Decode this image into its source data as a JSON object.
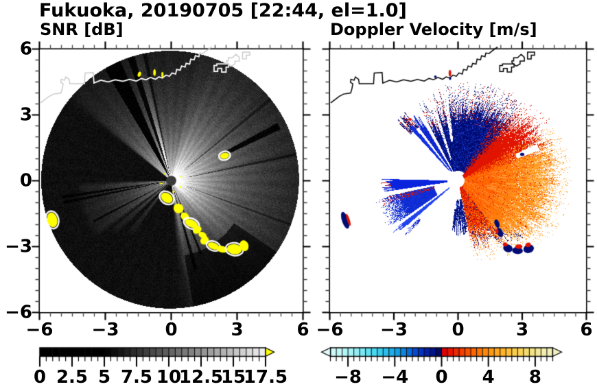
{
  "title": "Fukuoka, 20190705 [22:44, el=1.0]",
  "panels": {
    "left": {
      "subtitle": "SNR [dB]"
    },
    "right": {
      "subtitle": "Doppler Velocity [m/s]"
    }
  },
  "axes": {
    "range": [
      -6,
      6
    ],
    "major_step": 3,
    "minor_step": 0.5,
    "tick_values": [
      -6,
      -3,
      0,
      3,
      6
    ],
    "tick_labels": [
      "−6",
      "−3",
      "0",
      "3",
      "6"
    ]
  },
  "colors": {
    "navy": "#000c74",
    "blue_speckle": "#1c3ace",
    "blue_wedge": "#0a23dd",
    "blue_mass": "#0d2ad6",
    "blue_ray": "#2143ee",
    "blue_streak1": "#0a1ecf",
    "blue_streak2": "#1130e0",
    "red": "#e01400",
    "orange_inner": "#ff6400",
    "orange_mid": "#ff8710",
    "orange_outer": "#ffa028",
    "yellow_clutter": "#ffff00",
    "hub_gray": "#3a3a3a",
    "coast_left_inner": "#ffffff",
    "coast_left_outer": "#c9c9c9",
    "coast_right": "#000000",
    "snr_arrow": "#ffff00",
    "dv_arrow_left": "#dffafa",
    "dv_arrow_right": "#f4f0c6"
  },
  "map": {
    "coast_main": [
      [
        -5.95,
        3.55
      ],
      [
        -5.55,
        3.85
      ],
      [
        -5.35,
        3.95
      ],
      [
        -5.02,
        4.0
      ],
      [
        -4.96,
        4.2
      ],
      [
        -4.92,
        4.42
      ],
      [
        -5.03,
        4.48
      ],
      [
        -5.01,
        4.62
      ],
      [
        -4.86,
        4.58
      ],
      [
        -4.8,
        4.73
      ],
      [
        -4.65,
        4.62
      ],
      [
        -4.62,
        4.42
      ],
      [
        -3.95,
        4.42
      ],
      [
        -3.92,
        4.91
      ],
      [
        -3.55,
        4.93
      ],
      [
        -3.52,
        4.45
      ],
      [
        -3.2,
        4.58
      ],
      [
        -2.87,
        4.5
      ],
      [
        -2.55,
        4.6
      ],
      [
        -2.2,
        4.53
      ],
      [
        -1.9,
        4.62
      ],
      [
        -1.58,
        4.54
      ],
      [
        -1.36,
        4.66
      ],
      [
        -1.15,
        4.6
      ],
      [
        -0.94,
        4.71
      ],
      [
        -0.72,
        4.62
      ],
      [
        -0.56,
        4.73
      ],
      [
        -0.4,
        4.68
      ],
      [
        -0.24,
        4.81
      ],
      [
        -0.08,
        4.76
      ],
      [
        0.04,
        4.91
      ],
      [
        0.2,
        4.86
      ],
      [
        0.25,
        5.07
      ],
      [
        0.41,
        5.04
      ],
      [
        0.47,
        5.23
      ],
      [
        0.63,
        5.18
      ],
      [
        0.68,
        5.35
      ],
      [
        0.84,
        5.31
      ],
      [
        0.89,
        5.54
      ],
      [
        1.05,
        5.51
      ],
      [
        1.1,
        5.7
      ],
      [
        1.26,
        5.65
      ],
      [
        1.3,
        5.82
      ],
      [
        1.45,
        5.8
      ],
      [
        1.6,
        5.92
      ],
      [
        1.85,
        6.1
      ]
    ],
    "piers": [
      {
        "pts": [
          [
            1.95,
            5.25
          ],
          [
            1.95,
            4.98
          ],
          [
            2.12,
            4.98
          ],
          [
            2.12,
            5.12
          ],
          [
            2.3,
            5.12
          ],
          [
            2.3,
            4.95
          ],
          [
            2.5,
            4.95
          ],
          [
            2.5,
            5.18
          ],
          [
            2.62,
            5.18
          ],
          [
            2.62,
            5.32
          ],
          [
            2.08,
            5.32
          ],
          [
            2.08,
            5.25
          ]
        ],
        "close": true
      },
      {
        "pts": [
          [
            2.52,
            5.38
          ],
          [
            2.72,
            5.22
          ],
          [
            2.9,
            5.32
          ],
          [
            2.9,
            5.45
          ],
          [
            3.1,
            5.45
          ],
          [
            3.1,
            5.62
          ],
          [
            2.95,
            5.76
          ],
          [
            2.78,
            5.6
          ],
          [
            2.6,
            5.6
          ],
          [
            2.6,
            5.46
          ],
          [
            2.52,
            5.46
          ]
        ],
        "close": true
      },
      {
        "pts": [
          [
            3.25,
            5.55
          ],
          [
            3.42,
            5.55
          ],
          [
            3.42,
            5.72
          ],
          [
            3.58,
            5.72
          ],
          [
            3.58,
            5.86
          ],
          [
            3.25,
            5.86
          ]
        ],
        "close": true
      }
    ]
  },
  "chart_data": [
    {
      "type": "heatmap",
      "name": "snr",
      "title": "SNR [dB]",
      "xlim": [
        -6,
        6
      ],
      "ylim": [
        -6,
        6
      ],
      "colorbar": {
        "min": 0,
        "max": 17.5,
        "segment_step": 0.5,
        "tick_values": [
          0,
          2.5,
          5,
          7.5,
          10,
          12.5,
          15,
          17.5
        ],
        "tick_labels": [
          "0",
          "2.5",
          "5",
          "7.5",
          "10",
          "12.5",
          "15",
          "17.5"
        ],
        "scale": "grayscale-black-to-white",
        "black_below": 5,
        "overflow_arrow": "right"
      },
      "disk": {
        "cx": -0.05,
        "cy": 0.05,
        "radius": 5.87
      },
      "bright_sectors": [
        {
          "a0": -80,
          "a1": 108,
          "A": 235,
          "k": 2.0,
          "soft": 6
        },
        {
          "a0": -45,
          "a1": 70,
          "A": 65,
          "k": 3.0,
          "soft": 10
        },
        {
          "a0": 121,
          "a1": 139,
          "A": 225,
          "k": 1.9,
          "soft": 3
        },
        {
          "a0": -176,
          "a1": -146,
          "A": 150,
          "k": 1.7,
          "soft": 4,
          "rmax": 4.4
        },
        {
          "a0": -140.8,
          "a1": -136.6,
          "A": 110,
          "k": 1.4,
          "soft": 1.2,
          "rmax": 3.6
        },
        {
          "a0": -129.8,
          "a1": -126.2,
          "A": 95,
          "k": 1.4,
          "soft": 1.2,
          "rmax": 3.2
        },
        {
          "a0": 103,
          "a1": 106.2,
          "A": 200,
          "k": 1.8,
          "soft": 1
        },
        {
          "a0": 109.8,
          "a1": 112.6,
          "A": 170,
          "k": 1.8,
          "soft": 1
        }
      ],
      "dark_lanes": [
        [
          106.4,
          109.6,
          0.12,
          0.3,
          6
        ],
        [
          113,
          120.8,
          0.05,
          0.3,
          6
        ],
        [
          101,
          102.6,
          0.35,
          0.3,
          6
        ],
        [
          25.2,
          28.6,
          0.08,
          2.7,
          5.5
        ],
        [
          -172.3,
          -170.7,
          0.12,
          0.3,
          5
        ],
        [
          -169.4,
          -167.7,
          0.15,
          0.3,
          5
        ],
        [
          -153.2,
          -151.6,
          0.2,
          0.3,
          4
        ],
        [
          -75.8,
          -73.5,
          0.15,
          0.3,
          4.2
        ],
        [
          -68.6,
          -66.9,
          0.18,
          0.3,
          3.6
        ],
        [
          11.2,
          12.6,
          0.45,
          0.8,
          6
        ],
        [
          38.6,
          40.2,
          0.5,
          0.8,
          6
        ],
        [
          -20.8,
          -19.6,
          0.5,
          0.8,
          6
        ],
        [
          -80,
          -34,
          0.3,
          3.45,
          6
        ]
      ],
      "clutter_blobs": [
        [
          -0.2,
          -0.78,
          0.58,
          0.42,
          -35,
          1
        ],
        [
          0.33,
          -1.26,
          0.46,
          0.44,
          -40,
          0
        ],
        [
          0.62,
          -1.63,
          0.4,
          0.34,
          -40,
          0
        ],
        [
          0.92,
          -1.95,
          0.62,
          0.34,
          -25,
          1
        ],
        [
          1.18,
          -2.24,
          0.33,
          0.42,
          -60,
          0
        ],
        [
          1.43,
          -2.48,
          0.4,
          0.27,
          -30,
          0
        ],
        [
          1.52,
          -2.72,
          0.36,
          0.4,
          -50,
          0
        ],
        [
          1.92,
          -2.97,
          0.52,
          0.3,
          -20,
          1
        ],
        [
          2.32,
          -3.12,
          0.52,
          0.3,
          -12,
          0
        ],
        [
          2.88,
          -3.12,
          0.68,
          0.46,
          -8,
          1
        ],
        [
          3.32,
          -2.96,
          0.4,
          0.5,
          18,
          0
        ],
        [
          -5.42,
          -1.78,
          0.46,
          0.68,
          14,
          1
        ],
        [
          2.43,
          1.14,
          0.4,
          0.27,
          14,
          1
        ],
        [
          -1.45,
          4.85,
          0.15,
          0.24,
          -15,
          0
        ],
        [
          -0.76,
          4.93,
          0.12,
          0.3,
          0,
          0
        ],
        [
          -0.4,
          4.83,
          0.1,
          0.26,
          0,
          0
        ],
        [
          0.42,
          -0.28,
          0.12,
          0.08,
          0,
          0
        ],
        [
          0.1,
          -0.5,
          0.1,
          0.1,
          0,
          0
        ],
        [
          -0.45,
          -0.12,
          0.14,
          0.07,
          0,
          0
        ],
        [
          -0.3,
          0.32,
          0.1,
          0.07,
          0,
          0
        ],
        [
          0.45,
          0.18,
          0.1,
          0.06,
          0,
          0
        ]
      ],
      "center_dot": {
        "x": 0,
        "y": 0,
        "radius": 0.23
      }
    },
    {
      "type": "heatmap",
      "name": "doppler",
      "title": "Doppler Velocity [m/s]",
      "xlim": [
        -6,
        6
      ],
      "ylim": [
        -6,
        6
      ],
      "colorbar": {
        "min": -9.5,
        "max": 9.5,
        "segment_step": 0.5,
        "tick_values": [
          -8,
          -4,
          0,
          4,
          8
        ],
        "tick_labels": [
          "−8",
          "−4",
          "0",
          "4",
          "8"
        ],
        "overflow_arrow": "both",
        "stops_neg": [
          [
            -9.75,
            "#dffafa"
          ],
          [
            -7.5,
            "#9ef2f4"
          ],
          [
            -5.5,
            "#3ed4f0"
          ],
          [
            -4.0,
            "#18a8e8"
          ],
          [
            -3.0,
            "#0b7ada"
          ],
          [
            -2.2,
            "#0546cc"
          ],
          [
            -1.4,
            "#0224b0"
          ],
          [
            -0.75,
            "#001488"
          ],
          [
            -0.25,
            "#000a60"
          ]
        ],
        "stops_pos": [
          [
            0.25,
            "#e00000"
          ],
          [
            1.5,
            "#f03400"
          ],
          [
            3.0,
            "#ff6f00"
          ],
          [
            4.5,
            "#ffa018"
          ],
          [
            6.0,
            "#ffc840"
          ],
          [
            7.5,
            "#f2e07a"
          ],
          [
            8.75,
            "#f2ecae"
          ],
          [
            9.75,
            "#f4f0c6"
          ]
        ]
      },
      "hub": {
        "x": 0,
        "y": 0,
        "radius": 0.3
      },
      "fan": {
        "a0": -78,
        "a1": 50,
        "r0": 0.28,
        "redge": [
          [
            -78,
            2.85
          ],
          [
            -60,
            3.15
          ],
          [
            -45,
            3.6
          ],
          [
            -25,
            4.3
          ],
          [
            0,
            4.45
          ],
          [
            15,
            4.5
          ],
          [
            30,
            4.25
          ],
          [
            42,
            4.0
          ],
          [
            50,
            3.8
          ]
        ]
      },
      "navy_sector": {
        "a0": 50,
        "a1": 118,
        "r0": 0.45,
        "nedge": [
          [
            50,
            3.6
          ],
          [
            80,
            3.5
          ],
          [
            100,
            3.2
          ],
          [
            118,
            2.9
          ]
        ]
      },
      "blue_wedges": [
        {
          "name": "streak1",
          "a0": 121.5,
          "a1": 127,
          "r0": 0.5,
          "r1": 3.25
        },
        {
          "name": "streak2",
          "a0": 129.5,
          "a1": 133.2,
          "r0": 0.6,
          "r1": 3.05
        },
        {
          "name": "nw_end_blob",
          "a0": 127,
          "a1": 136.5,
          "r0": 3.05,
          "r1": 3.62
        },
        {
          "name": "west",
          "center": -176.5,
          "half": 4.8,
          "r0": 0.5,
          "r1": 3.3
        },
        {
          "name": "sw_mass",
          "a0": -168,
          "a1": -146,
          "r0": 1.15,
          "r1": 3.6
        },
        {
          "name": "sw_ray",
          "a0": -143.5,
          "a1": -139.5,
          "r0": 0.5,
          "r1": 3.45
        },
        {
          "name": "sw_bits",
          "a0": -137,
          "a1": -133.8,
          "r0": 2.5,
          "r1": 3.1
        }
      ],
      "south_navy": {
        "a0": -97,
        "a1": -78.5,
        "r0": 0.85,
        "r1": 2.15
      },
      "white_lanes": [
        {
          "a0": 97,
          "a1": 100.5,
          "r0": 1.8,
          "r1": 4.2
        },
        {
          "a0": 107,
          "a1": 110.3,
          "r0": 1.0,
          "r1": 4.2
        },
        {
          "a0": 118,
          "a1": 121.5,
          "r0": 0.3,
          "r1": 4.2
        },
        {
          "a0": 127.2,
          "a1": 129.4,
          "r0": 0.3,
          "r1": 3.0
        },
        {
          "a0": -97,
          "a1": -94,
          "r0": 0.3,
          "r1": 1.3
        },
        {
          "a0": -88,
          "a1": -85.5,
          "r0": 0.3,
          "r1": 1.2
        }
      ],
      "ne_white_gap": {
        "center": 22.2,
        "half": 2.2,
        "r0": 2.95,
        "r1": 4.05
      },
      "blobs": [
        {
          "b": [
            -5.28,
            -1.8,
            0.3,
            0.8,
            18
          ],
          "c": "navy"
        },
        {
          "b": [
            -5.13,
            -1.78,
            0.13,
            0.58,
            18
          ],
          "c": "red"
        },
        {
          "b": [
            1.82,
            -1.95,
            0.22,
            0.4,
            20
          ],
          "c": "navy"
        },
        {
          "b": [
            1.95,
            -2.35,
            0.28,
            0.45,
            25
          ],
          "c": "navy"
        },
        {
          "b": [
            1.82,
            -2.3,
            0.14,
            0.22,
            0
          ],
          "c": "red"
        },
        {
          "b": [
            2.33,
            -3.08,
            0.45,
            0.35,
            -20
          ],
          "c": "navy"
        },
        {
          "b": [
            2.2,
            -2.9,
            0.22,
            0.18,
            -20
          ],
          "c": "red"
        },
        {
          "b": [
            2.78,
            -3.18,
            0.5,
            0.32,
            -5
          ],
          "c": "navy"
        },
        {
          "b": [
            2.84,
            -3.0,
            0.34,
            0.2,
            0
          ],
          "c": "red"
        },
        {
          "b": [
            3.3,
            -3.1,
            0.5,
            0.38,
            15
          ],
          "c": "navy"
        },
        {
          "b": [
            3.28,
            -2.92,
            0.26,
            0.2,
            15
          ],
          "c": "red"
        },
        {
          "b": [
            -1.06,
            4.74,
            0.12,
            0.12,
            0
          ],
          "c": "navy"
        },
        {
          "b": [
            -0.38,
            4.9,
            0.12,
            0.3,
            0
          ],
          "c": "red"
        },
        {
          "b": [
            -0.37,
            4.66,
            0.1,
            0.14,
            0
          ],
          "c": "navy"
        },
        {
          "b": [
            3.0,
            1.2,
            0.2,
            0.15,
            0
          ],
          "c": "navy"
        },
        {
          "b": [
            -2.25,
            2.8,
            0.16,
            0.12,
            0
          ],
          "c": "red"
        }
      ]
    }
  ],
  "layout_note": "dual panel radar PPI display"
}
